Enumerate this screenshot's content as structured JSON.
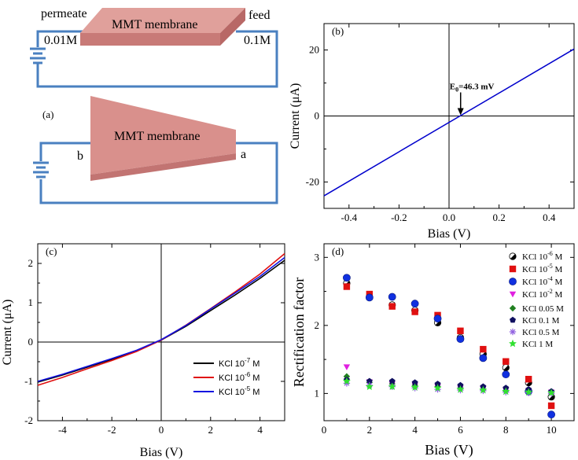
{
  "schematic": {
    "permeate_label": "permeate",
    "feed_label": "feed",
    "conc_left": "0.01M",
    "conc_right": "0.1M",
    "membrane_label_top": "MMT membrane",
    "panel_label": "(a)",
    "membrane_label_bottom": "MMT membrane",
    "end_b": "b",
    "end_a": "a",
    "colors": {
      "wire": "#4a80c0",
      "membrane": "#d9908c",
      "membrane_dark": "#c27472"
    }
  },
  "chart_data": [
    {
      "type": "line",
      "panel_label": "(b)",
      "xlabel": "Bias (V)",
      "ylabel": "Current (μA)",
      "xlim": [
        -0.5,
        0.5
      ],
      "ylim": [
        -28,
        28
      ],
      "xticks": [
        -0.4,
        -0.2,
        0.0,
        0.2,
        0.4
      ],
      "xtick_labels": [
        "-0.4",
        "-0.2",
        "0.0",
        "0.2",
        "0.4"
      ],
      "yticks": [
        -20,
        0,
        20
      ],
      "ytick_labels": [
        "-20",
        "0",
        "20"
      ],
      "series": [
        {
          "color": "#0000cc",
          "x": [
            -0.5,
            0.5
          ],
          "y": [
            -24.2,
            20.3
          ]
        }
      ],
      "annotation": {
        "text_main": "E",
        "text_sub": "0",
        "text_rest": "=46.3 mV",
        "x": 0.0463,
        "y": 0
      }
    },
    {
      "type": "line",
      "panel_label": "(c)",
      "xlabel": "Bias (V)",
      "ylabel": "Current (μA)",
      "xlim": [
        -5,
        5
      ],
      "ylim": [
        -2,
        2.5
      ],
      "xticks": [
        -4,
        -2,
        0,
        2,
        4
      ],
      "xtick_labels": [
        "-4",
        "-2",
        "0",
        "2",
        "4"
      ],
      "yticks": [
        -2,
        -1,
        0,
        1,
        2
      ],
      "ytick_labels": [
        "-2",
        "-1",
        "0",
        "1",
        "2"
      ],
      "series": [
        {
          "name_main": "KCl 10",
          "name_exp": "-7",
          "name_unit": " M",
          "color": "#000000",
          "x": [
            -5,
            -4,
            -3,
            -2,
            -1,
            0,
            1,
            2,
            3,
            4,
            5
          ],
          "y": [
            -1.02,
            -0.84,
            -0.64,
            -0.44,
            -0.22,
            0.05,
            0.4,
            0.8,
            1.2,
            1.62,
            2.08
          ]
        },
        {
          "name_main": "KCl 10",
          "name_exp": "-6",
          "name_unit": " M",
          "color": "#e01010",
          "x": [
            -5,
            -4,
            -3,
            -2,
            -1,
            0,
            1,
            2,
            3,
            4,
            5
          ],
          "y": [
            -1.1,
            -0.9,
            -0.68,
            -0.47,
            -0.24,
            0.05,
            0.43,
            0.85,
            1.28,
            1.73,
            2.25
          ]
        },
        {
          "name_main": "KCl 10",
          "name_exp": "-5",
          "name_unit": " M",
          "color": "#1010e0",
          "x": [
            -5,
            -4,
            -3,
            -2,
            -1,
            0,
            1,
            2,
            3,
            4,
            5
          ],
          "y": [
            -1.0,
            -0.82,
            -0.62,
            -0.42,
            -0.21,
            0.06,
            0.42,
            0.84,
            1.25,
            1.67,
            2.15
          ]
        }
      ]
    },
    {
      "type": "scatter",
      "panel_label": "(d)",
      "xlabel": "Bias (V)",
      "ylabel": "Rectification factor",
      "xlim": [
        0,
        11
      ],
      "ylim": [
        0.6,
        3.2
      ],
      "xticks": [
        0,
        2,
        4,
        6,
        8,
        10
      ],
      "xtick_labels": [
        "0",
        "2",
        "4",
        "6",
        "8",
        "10"
      ],
      "yticks": [
        1,
        2,
        3
      ],
      "ytick_labels": [
        "1",
        "2",
        "3"
      ],
      "series": [
        {
          "name_main": "KCl  10",
          "name_exp": "-6",
          "name_unit": " M",
          "marker": "circle-half",
          "color": "#000000",
          "x": [
            1,
            2,
            3,
            4,
            5,
            6,
            7,
            8,
            9,
            10
          ],
          "y": [
            2.62,
            2.42,
            2.3,
            2.22,
            2.04,
            1.82,
            1.58,
            1.38,
            1.16,
            0.95
          ]
        },
        {
          "name_main": "KCl  10",
          "name_exp": "-5",
          "name_unit": " M",
          "marker": "square",
          "color": "#e01010",
          "x": [
            1,
            2,
            3,
            4,
            5,
            6,
            7,
            8,
            9,
            10
          ],
          "y": [
            2.57,
            2.46,
            2.28,
            2.2,
            2.15,
            1.92,
            1.65,
            1.47,
            1.21,
            0.82
          ]
        },
        {
          "name_main": "KCl  10",
          "name_exp": "-4",
          "name_unit": " M",
          "marker": "circle",
          "color": "#1030e0",
          "x": [
            1,
            2,
            3,
            4,
            5,
            6,
            7,
            8,
            9,
            10
          ],
          "y": [
            2.7,
            2.41,
            2.42,
            2.32,
            2.1,
            1.8,
            1.52,
            1.28,
            1.03,
            0.69
          ]
        },
        {
          "name_main": "KCl  10",
          "name_exp": "-2",
          "name_unit": " M",
          "marker": "triangle-down",
          "color": "#e020e0",
          "x": [
            1,
            2,
            3,
            4,
            5,
            6,
            7,
            8,
            9,
            10
          ],
          "y": [
            1.39,
            1.17,
            1.14,
            1.12,
            1.1,
            1.08,
            1.07,
            1.05,
            1.04,
            1.02
          ]
        },
        {
          "name_main": "KCl  0.05 M",
          "name_exp": "",
          "name_unit": "",
          "marker": "diamond",
          "color": "#208020",
          "x": [
            1,
            2,
            3,
            4,
            5,
            6,
            7,
            8,
            9,
            10
          ],
          "y": [
            1.25,
            1.16,
            1.14,
            1.12,
            1.1,
            1.08,
            1.06,
            1.04,
            1.03,
            1.02
          ]
        },
        {
          "name_main": "KCl  0.1 M",
          "name_exp": "",
          "name_unit": "",
          "marker": "pentagon",
          "color": "#101060",
          "x": [
            1,
            2,
            3,
            4,
            5,
            6,
            7,
            8,
            9,
            10
          ],
          "y": [
            1.2,
            1.18,
            1.18,
            1.16,
            1.14,
            1.12,
            1.1,
            1.08,
            1.06,
            1.03
          ]
        },
        {
          "name_main": "KCl  0.5 M",
          "name_exp": "",
          "name_unit": "",
          "marker": "asterisk",
          "color": "#9060e0",
          "x": [
            1,
            2,
            3,
            4,
            5,
            6,
            7,
            8,
            9,
            10
          ],
          "y": [
            1.15,
            1.12,
            1.1,
            1.08,
            1.06,
            1.05,
            1.04,
            1.02,
            1.01,
            1.0
          ]
        },
        {
          "name_main": "KCl  1 M",
          "name_exp": "",
          "name_unit": "",
          "marker": "star",
          "color": "#30e030",
          "x": [
            1,
            2,
            3,
            4,
            5,
            6,
            7,
            8,
            9,
            10
          ],
          "y": [
            1.18,
            1.1,
            1.1,
            1.09,
            1.08,
            1.06,
            1.05,
            1.03,
            1.02,
            1.01
          ]
        }
      ]
    }
  ]
}
